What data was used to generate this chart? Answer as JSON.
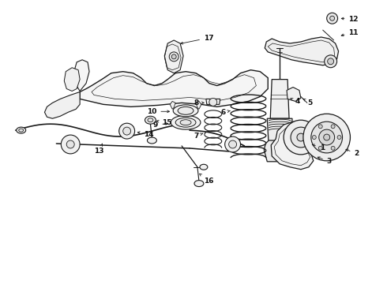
{
  "background_color": "#ffffff",
  "line_color": "#1a1a1a",
  "label_color": "#111111",
  "lfs": 6.5,
  "figsize": [
    4.9,
    3.6
  ],
  "dpi": 100,
  "xlim": [
    0,
    490
  ],
  "ylim": [
    0,
    360
  ]
}
